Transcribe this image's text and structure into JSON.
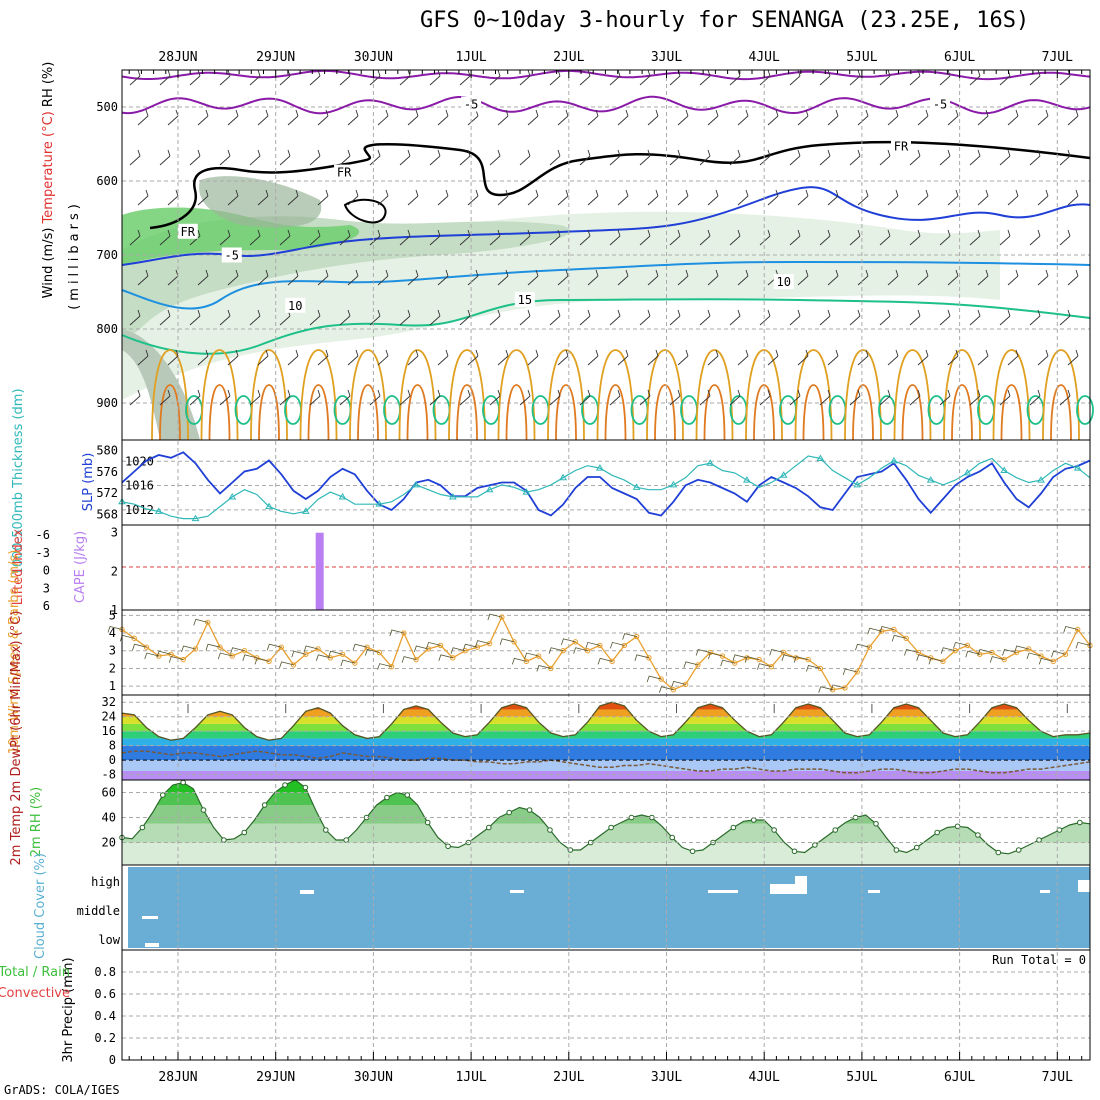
{
  "title": "GFS 0~10day 3-hourly for SENANGA (23.25E, 16S)",
  "footer": "GrADS: COLA/IGES",
  "run_total_label": "Run Total = 0",
  "colors": {
    "temperature_purple": "#8a1aa8",
    "temperature_blue_dark": "#1f3fd6",
    "temperature_blue_light": "#1e90e0",
    "temperature_teal": "#1ec089",
    "temperature_orange": "#e0a020",
    "temperature_dark_orange": "#e07a20",
    "temperature_red": "#d81878",
    "freezing": "#000000",
    "rh_green": "#3cbf3c",
    "slp_blue": "#1f3fd6",
    "thickness_cyan": "#30b8b8",
    "cape_purple": "#b87ef2",
    "lifted_index_red": "#e04040",
    "wind10m_orange": "#e8a030",
    "cloud_blue": "#6aaed6",
    "rh2m_green": "#3cbf3c"
  },
  "chart_data": [
    {
      "panel": "upper-air",
      "type": "contour",
      "ylabels": [
        {
          "text": "Wind (m/s)",
          "color": "#000000"
        },
        {
          "text": "Temperature (°C)",
          "color": "#e03030"
        },
        {
          "text": "RH (%)",
          "color": "#000000"
        }
      ],
      "axis_title": "(millibars)",
      "y_ticks": [
        500,
        600,
        700,
        800,
        900
      ],
      "ylim": [
        950,
        450
      ],
      "x_dates": [
        "28JUN",
        "29JUN",
        "30JUN",
        "1JUL",
        "2JUL",
        "3JUL",
        "4JUL",
        "5JUL",
        "6JUL",
        "7JUL"
      ],
      "contour_labels": [
        {
          "text": "-5",
          "day": 3.0,
          "p": 498,
          "color": "#8a1aa8"
        },
        {
          "text": "-5",
          "day": 7.8,
          "p": 498,
          "color": "#8a1aa8"
        },
        {
          "text": "FR",
          "day": 7.4,
          "p": 555,
          "color": "#000000"
        },
        {
          "text": "FR",
          "day": 1.7,
          "p": 590,
          "color": "#000000"
        },
        {
          "text": "FR",
          "day": 0.1,
          "p": 670,
          "color": "#000000"
        },
        {
          "text": "-5",
          "day": 0.55,
          "p": 702,
          "color": "#1f3fd6"
        },
        {
          "text": "10",
          "day": 1.2,
          "p": 770,
          "color": "#1e90e0"
        },
        {
          "text": "10",
          "day": 6.2,
          "p": 738,
          "color": "#1e90e0"
        },
        {
          "text": "15",
          "day": 3.55,
          "p": 762,
          "color": "#1ec089"
        }
      ]
    },
    {
      "panel": "slp-thickness",
      "type": "line",
      "ylabel_left": "1000-500mb Thickness (dm)",
      "ylabel_right": "SLP (mb)",
      "left_ticks": [
        568,
        572,
        576,
        580
      ],
      "right_ticks": [
        1012,
        1016,
        1020
      ],
      "ylim_left": [
        566,
        582
      ],
      "ylim_right": [
        1009.5,
        1023.5
      ],
      "series": [
        {
          "name": "SLP",
          "axis": "right",
          "color": "#1f3fd6",
          "values": [
            1016.5,
            1018.5,
            1020.5,
            1021.5,
            1021.0,
            1022.0,
            1020.0,
            1017.0,
            1014.5,
            1016.5,
            1018.5,
            1019.0,
            1020.5,
            1018.0,
            1015.0,
            1013.5,
            1015.0,
            1017.5,
            1019.0,
            1018.0,
            1015.0,
            1012.5,
            1011.5,
            1013.5,
            1016.5,
            1017.0,
            1016.0,
            1014.0,
            1014.0,
            1015.5,
            1016.0,
            1016.5,
            1016.5,
            1015.0,
            1011.5,
            1010.5,
            1012.5,
            1015.5,
            1017.5,
            1017.5,
            1015.5,
            1014.5,
            1013.5,
            1011.0,
            1010.5,
            1013.0,
            1016.0,
            1017.0,
            1016.5,
            1015.5,
            1014.5,
            1013.0,
            1016.0,
            1017.5,
            1016.5,
            1015.5,
            1014.0,
            1012.0,
            1011.5,
            1014.5,
            1017.5,
            1018.0,
            1018.5,
            1020.0,
            1017.0,
            1013.5,
            1011.0,
            1013.5,
            1016.0,
            1017.5,
            1018.5,
            1020.0,
            1016.5,
            1013.5,
            1012.0,
            1014.5,
            1017.5,
            1019.0,
            1019.5,
            1020.5
          ]
        },
        {
          "name": "Thickness",
          "axis": "left",
          "color": "#30b8b8",
          "values": [
            570.0,
            569.5,
            568.5,
            568.0,
            567.0,
            566.5,
            566.5,
            567.0,
            569.0,
            571.0,
            572.5,
            571.5,
            569.0,
            568.0,
            567.5,
            568.0,
            570.5,
            572.0,
            571.0,
            569.5,
            569.5,
            569.5,
            570.0,
            571.5,
            573.5,
            572.5,
            571.5,
            571.0,
            571.0,
            571.0,
            572.5,
            573.5,
            573.0,
            572.0,
            572.5,
            573.5,
            575.0,
            576.5,
            577.5,
            577.0,
            575.5,
            574.5,
            573.0,
            572.5,
            572.5,
            573.5,
            575.0,
            577.5,
            578.0,
            576.5,
            576.0,
            574.5,
            573.0,
            574.0,
            575.5,
            577.5,
            579.5,
            579.0,
            576.5,
            575.0,
            573.5,
            575.0,
            577.0,
            578.5,
            577.5,
            575.5,
            574.5,
            573.5,
            574.5,
            576.0,
            578.0,
            579.0,
            576.5,
            575.0,
            574.0,
            574.5,
            576.5,
            578.0,
            577.0,
            575.0
          ]
        }
      ]
    },
    {
      "panel": "instability",
      "type": "bar",
      "ylabel_left": "Lifted Index",
      "ylabel_right": "CAPE (J/kg)",
      "left_ticks": [
        "-6",
        "-3",
        "0",
        "3",
        "6"
      ],
      "right_ticks": [
        1,
        2,
        3
      ],
      "ylim_right": [
        1,
        3.2
      ],
      "bars": [
        {
          "day": 1.45,
          "value": 3.0,
          "color": "#b87ef2"
        }
      ]
    },
    {
      "panel": "wind10m",
      "type": "line",
      "ylabel": "10m Wind Speed & Barbs (m/s)",
      "y_ticks": [
        1,
        2,
        3,
        4,
        5
      ],
      "ylim": [
        0.5,
        5.3
      ],
      "series": [
        {
          "name": "Speed",
          "color": "#e8a030",
          "values": [
            4.2,
            3.7,
            3.2,
            2.7,
            2.8,
            2.5,
            3.1,
            4.6,
            3.2,
            2.7,
            3.0,
            2.6,
            2.4,
            3.2,
            2.2,
            2.8,
            3.1,
            2.6,
            2.8,
            2.3,
            3.2,
            2.9,
            2.1,
            4.0,
            2.5,
            3.1,
            3.3,
            2.6,
            3.0,
            3.2,
            3.4,
            4.9,
            3.5,
            2.4,
            2.7,
            2.0,
            3.0,
            3.5,
            3.0,
            3.3,
            2.4,
            3.3,
            3.8,
            2.6,
            1.4,
            0.8,
            1.1,
            2.2,
            2.9,
            2.7,
            2.3,
            2.6,
            2.5,
            2.1,
            2.9,
            2.6,
            2.5,
            2.0,
            0.8,
            0.9,
            1.8,
            3.2,
            4.1,
            4.2,
            3.7,
            2.9,
            2.6,
            2.4,
            3.0,
            3.3,
            2.8,
            2.9,
            2.5,
            2.9,
            3.1,
            2.7,
            2.4,
            2.8,
            4.2,
            3.3
          ]
        }
      ]
    },
    {
      "panel": "temperature2m",
      "type": "area",
      "ylabel": "2m Temp 2m DewPt (6hr Min/Max) (°C)",
      "y_ticks": [
        -8,
        0,
        8,
        16,
        24,
        32
      ],
      "ylim": [
        -11,
        36
      ],
      "series": [
        {
          "name": "2m Temp",
          "values": [
            26,
            25,
            18,
            13,
            11,
            12,
            18,
            25,
            27,
            25,
            18,
            13,
            11,
            12,
            19,
            27,
            29,
            26,
            19,
            14,
            12,
            13,
            20,
            28,
            30,
            28,
            21,
            15,
            13,
            14,
            21,
            29,
            31,
            29,
            21,
            15,
            13,
            14,
            21,
            30,
            32,
            30,
            22,
            16,
            13,
            14,
            21,
            29,
            31,
            29,
            22,
            16,
            13,
            14,
            21,
            29,
            31,
            29,
            22,
            15,
            13,
            14,
            21,
            29,
            31,
            29,
            22,
            15,
            13,
            14,
            21,
            29,
            31,
            29,
            22,
            16,
            13,
            14,
            14,
            15
          ]
        },
        {
          "name": "2m DewPt",
          "values": [
            4,
            5,
            5,
            4,
            3,
            4,
            4,
            3,
            2,
            3,
            4,
            5,
            4,
            3,
            3,
            2,
            1,
            2,
            4,
            3,
            2,
            2,
            1,
            0,
            0,
            1,
            1,
            0,
            0,
            -1,
            -1,
            -2,
            -2,
            -1,
            -1,
            0,
            -1,
            -2,
            -3,
            -4,
            -4,
            -3,
            -3,
            -2,
            -3,
            -4,
            -5,
            -6,
            -6,
            -5,
            -5,
            -4,
            -5,
            -6,
            -6,
            -5,
            -5,
            -5,
            -6,
            -7,
            -7,
            -6,
            -5,
            -5,
            -6,
            -7,
            -7,
            -6,
            -5,
            -5,
            -6,
            -7,
            -7,
            -6,
            -5,
            -5,
            -4,
            -3,
            -2,
            -1
          ]
        }
      ]
    },
    {
      "panel": "rh2m",
      "type": "area",
      "ylabel": "2m RH (%)",
      "y_ticks": [
        20,
        40,
        60
      ],
      "ylim": [
        2,
        70
      ],
      "series": [
        {
          "name": "2m RH",
          "color": "#3cbf3c",
          "values": [
            24,
            23,
            32,
            44,
            58,
            66,
            68,
            63,
            46,
            32,
            22,
            23,
            28,
            38,
            50,
            60,
            66,
            70,
            64,
            46,
            30,
            22,
            22,
            30,
            40,
            50,
            56,
            60,
            58,
            50,
            36,
            24,
            17,
            16,
            20,
            26,
            32,
            40,
            44,
            48,
            46,
            40,
            30,
            20,
            14,
            14,
            20,
            26,
            32,
            36,
            40,
            42,
            40,
            33,
            24,
            16,
            13,
            14,
            20,
            26,
            32,
            37,
            38,
            38,
            30,
            20,
            13,
            12,
            18,
            24,
            30,
            36,
            40,
            42,
            35,
            24,
            14,
            12,
            16,
            22,
            28,
            32,
            33,
            32,
            26,
            18,
            12,
            11,
            14,
            18,
            22,
            26,
            30,
            34,
            36,
            35
          ]
        }
      ]
    },
    {
      "panel": "cloud-cover",
      "type": "heatmap",
      "ylabel": "Cloud Cover (%)",
      "levels": [
        "high",
        "middle",
        "low"
      ],
      "color": "#6aaed6"
    },
    {
      "panel": "precipitation",
      "type": "bar",
      "ylabel_left": "Total / Rain",
      "ylabel_left2": "Convective",
      "ylabel": "3hr Precip (mm)",
      "y_ticks": [
        "0",
        "0.2",
        "0.4",
        "0.6",
        "0.8"
      ],
      "ylim": [
        0,
        1.0
      ],
      "values": []
    }
  ]
}
